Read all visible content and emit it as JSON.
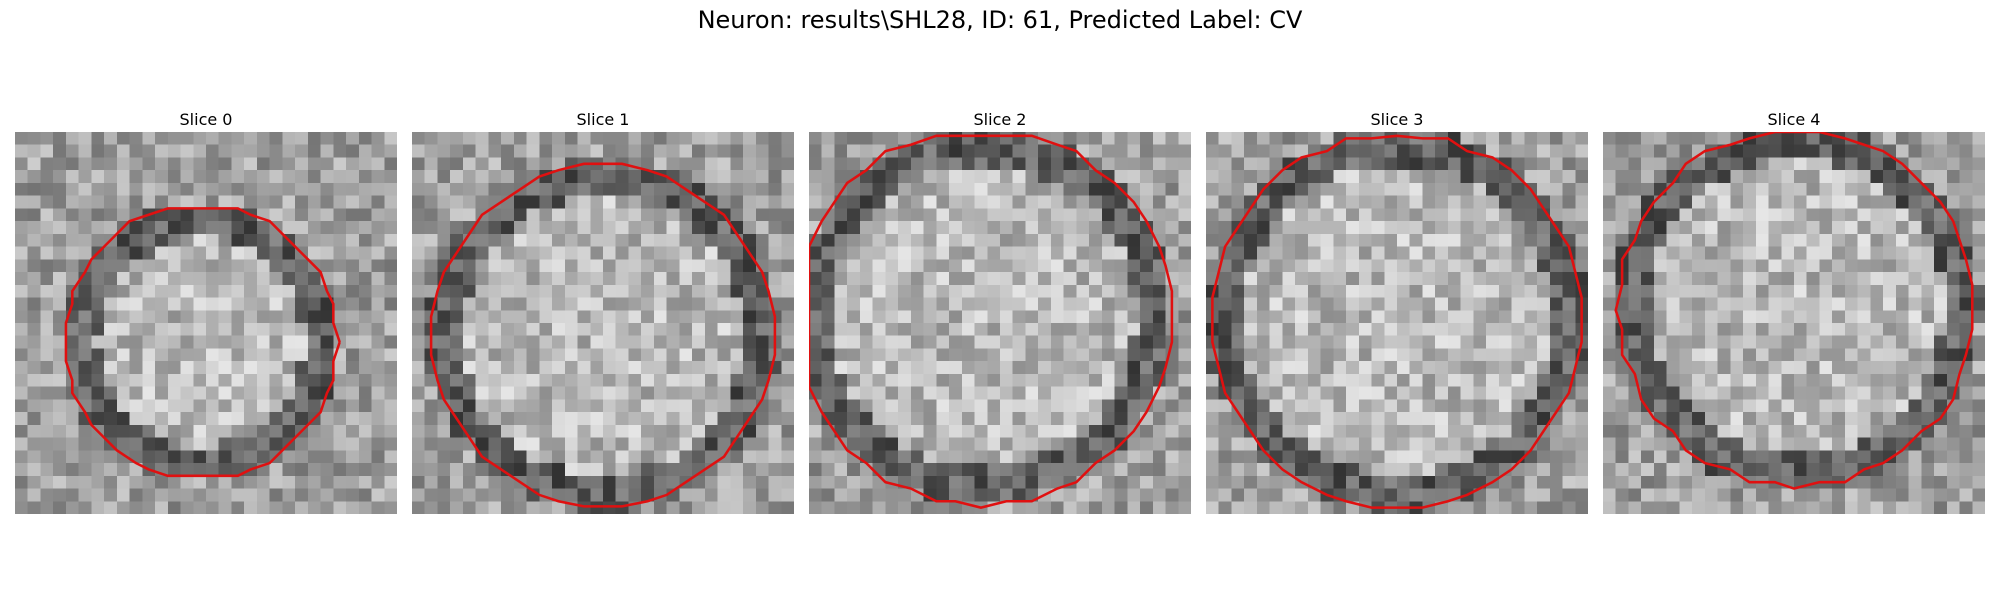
{
  "figure": {
    "title": "Neuron: results\\SHL28, ID: 61, Predicted Label: CV",
    "contour_color": "#e01010",
    "image_colormap": "gray"
  },
  "slices": [
    {
      "label": "Slice 0"
    },
    {
      "label": "Slice 1"
    },
    {
      "label": "Slice 2"
    },
    {
      "label": "Slice 3"
    },
    {
      "label": "Slice 4"
    }
  ]
}
